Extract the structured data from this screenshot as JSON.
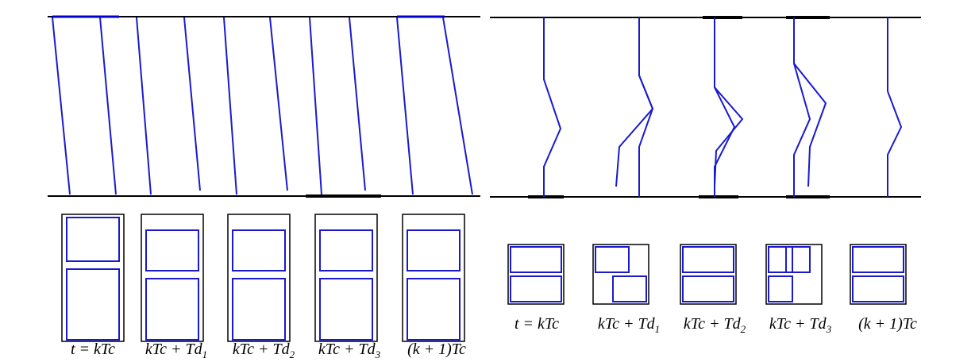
{
  "left_panel": {
    "labels": [
      {
        "main": "t = kTc",
        "sub": ""
      },
      {
        "main": "kTc + Td",
        "sub": "1"
      },
      {
        "main": "kTc + Td",
        "sub": "2"
      },
      {
        "main": "kTc + Td",
        "sub": "3"
      },
      {
        "main": "(k + 1)Tc",
        "sub": ""
      }
    ]
  },
  "right_panel": {
    "labels": [
      {
        "main": "t = kTc",
        "sub": ""
      },
      {
        "main": "kTc + Td",
        "sub": "1"
      },
      {
        "main": "kTc + Td",
        "sub": "2"
      },
      {
        "main": "kTc + Td",
        "sub": "3"
      },
      {
        "main": "(k + 1)Tc",
        "sub": ""
      }
    ]
  }
}
